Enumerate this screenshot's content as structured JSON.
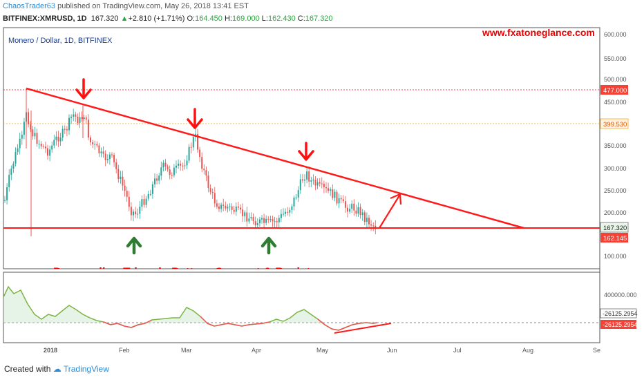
{
  "header": {
    "author": "ChaosTrader63",
    "published_text": "published on TradingView.com, May 26, 2018 13:41 EST",
    "symbol": "BITFINEX:XMRUSD, 1D",
    "last": "167.320",
    "change": "+2.810 (+1.71%)",
    "o_label": "O:",
    "o": "164.450",
    "h_label": "H:",
    "h": "169.000",
    "l_label": "L:",
    "l": "162.430",
    "c_label": "C:",
    "c": "167.320"
  },
  "chart": {
    "legend": "Monero / Dollar, 1D, BITFINEX",
    "watermark": "www.fxatoneglance.com",
    "annotation": "Descending Triangle Pattern Support & Resistance",
    "price_ticks": [
      "600.000",
      "550.000",
      "500.000",
      "450.000",
      "350.000",
      "300.000",
      "250.000",
      "200.000",
      "100.000"
    ],
    "labels": {
      "resistance": "477.000",
      "mid": "399.530",
      "last": "167.320",
      "support": "162.145"
    },
    "osc_ticks": [
      "400000.000"
    ],
    "osc_labels": {
      "upper": "-26125.2954",
      "lower": "-26125.2954"
    },
    "time_ticks": [
      "2018",
      "Feb",
      "Mar",
      "Apr",
      "May",
      "Jun",
      "Jul",
      "Aug",
      "Se"
    ],
    "colors": {
      "up": "#26a69a",
      "down": "#ef5350",
      "pattern": "#ff1a1a",
      "support_arrow": "#2e7d32"
    }
  },
  "footer": {
    "created_with": "Created with",
    "brand": "TradingView"
  }
}
